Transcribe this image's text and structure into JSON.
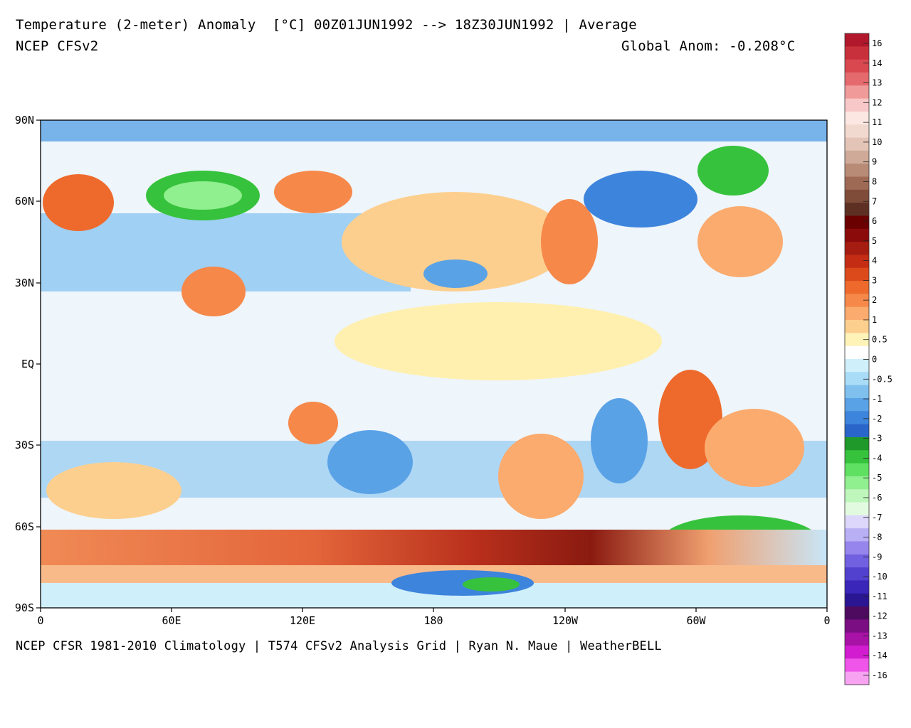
{
  "header": {
    "title": "Temperature (2-meter) Anomaly  [°C] 00Z01JUN1992 --> 18Z30JUN1992 | Average",
    "model": "NCEP CFSv2",
    "global_anom": "Global Anom: -0.208°C"
  },
  "footer": {
    "credit": "NCEP CFSR 1981-2010 Climatology | T574 CFSv2 Analysis Grid | Ryan N. Maue | WeatherBELL"
  },
  "axes": {
    "lat_labels": [
      "90N",
      "60N",
      "30N",
      "EQ",
      "30S",
      "60S",
      "90S"
    ],
    "lon_labels": [
      "0",
      "60E",
      "120E",
      "180",
      "120W",
      "60W",
      "0"
    ]
  },
  "colorbar": {
    "labels": [
      "16",
      "14",
      "13",
      "12",
      "11",
      "10",
      "9",
      "8",
      "7",
      "6",
      "5",
      "4",
      "3",
      "2",
      "1",
      "0.5",
      "0",
      "-0.5",
      "-1",
      "-2",
      "-3",
      "-4",
      "-5",
      "-6",
      "-7",
      "-8",
      "-9",
      "-10",
      "-11",
      "-12",
      "-13",
      "-14",
      "-16"
    ],
    "colors": [
      "#b2182b",
      "#c8303c",
      "#d9484f",
      "#e56a6e",
      "#f09a9a",
      "#f8c7c7",
      "#fde7e2",
      "#f2d9cf",
      "#e3c4b6",
      "#cfaa98",
      "#b88b76",
      "#9e6a55",
      "#7f4c3a",
      "#5e3024",
      "#6b0000",
      "#8b0a0a",
      "#a51c10",
      "#c42d14",
      "#dc4a1c",
      "#ee6a2c",
      "#f6884a",
      "#fbab6e",
      "#fdcf8e",
      "#fff3b8",
      "#ffffff",
      "#cfeffb",
      "#a9dcf6",
      "#7fc0ef",
      "#5aa2e6",
      "#3d84dc",
      "#2a66c9",
      "#1f9a2a",
      "#37c23d",
      "#5fe062",
      "#90ef8e",
      "#bff6bc",
      "#e2fbe0",
      "#dcd7fb",
      "#b9aff5",
      "#9585ec",
      "#7161e0",
      "#5240cf",
      "#3a26b8",
      "#2a1692",
      "#4d0a5e",
      "#7a0e82",
      "#a812a6",
      "#d21ccf",
      "#ee55e8",
      "#f7a3f2"
    ]
  },
  "map": {
    "background_hot": "#f6a070",
    "background_cold": "#6aaee8",
    "neutral": "#f4f7fb"
  }
}
